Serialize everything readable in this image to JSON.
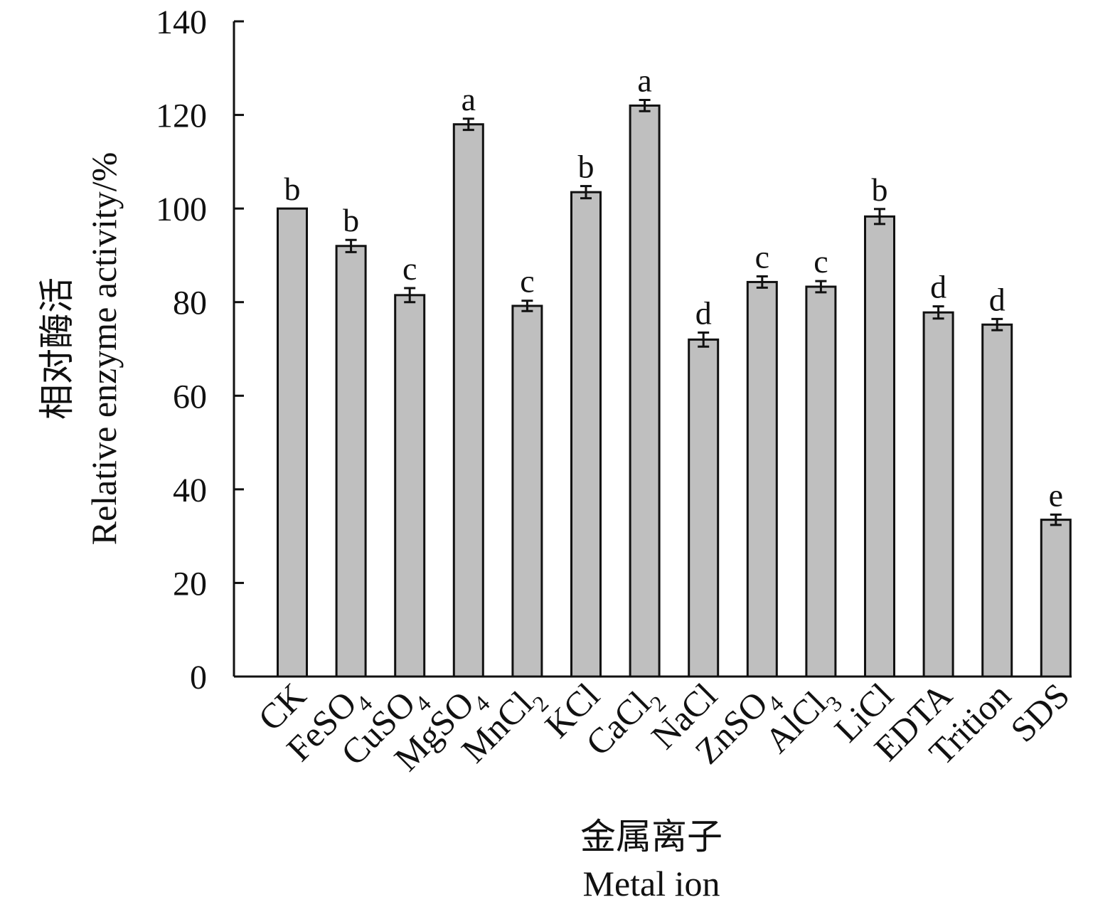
{
  "chart_data": {
    "type": "bar",
    "categories": [
      "CK",
      "FeSO4",
      "CuSO4",
      "MgSO4",
      "MnCl2",
      "KCl",
      "CaCl2",
      "NaCl",
      "ZnSO4",
      "AlCl3",
      "LiCl",
      "EDTA",
      "Trition",
      "SDS"
    ],
    "category_labels": [
      {
        "base": "CK",
        "sub": ""
      },
      {
        "base": "FeSO",
        "sub": "4"
      },
      {
        "base": "CuSO",
        "sub": "4"
      },
      {
        "base": "MgSO",
        "sub": "4"
      },
      {
        "base": "MnCl",
        "sub": "2"
      },
      {
        "base": "KCl",
        "sub": ""
      },
      {
        "base": "CaCl",
        "sub": "2"
      },
      {
        "base": "NaCl",
        "sub": ""
      },
      {
        "base": "ZnSO",
        "sub": "4"
      },
      {
        "base": "AlCl",
        "sub": "3"
      },
      {
        "base": "LiCl",
        "sub": ""
      },
      {
        "base": "EDTA",
        "sub": ""
      },
      {
        "base": "Trition",
        "sub": ""
      },
      {
        "base": "SDS",
        "sub": ""
      }
    ],
    "values": [
      100,
      92,
      81.5,
      118,
      79.2,
      103.5,
      122,
      72,
      84.3,
      83.3,
      98.3,
      77.8,
      75.2,
      33.5
    ],
    "errors": [
      0,
      1.3,
      1.5,
      1.2,
      1.1,
      1.3,
      1.2,
      1.5,
      1.2,
      1.2,
      1.6,
      1.3,
      1.2,
      1.1
    ],
    "significance": [
      "b",
      "b",
      "c",
      "a",
      "c",
      "b",
      "a",
      "d",
      "c",
      "c",
      "b",
      "d",
      "d",
      "e"
    ],
    "ylabel_cn": "相对酶活",
    "ylabel_en": "Relative enzyme activity/%",
    "xlabel_cn": "金属离子",
    "xlabel_en": "Metal ion",
    "ylim": [
      0,
      140
    ],
    "yticks": [
      0,
      20,
      40,
      60,
      80,
      100,
      120,
      140
    ],
    "bar_color": "#bfbfbf",
    "edge_color": "#111111",
    "grid": false,
    "legend": "none"
  }
}
